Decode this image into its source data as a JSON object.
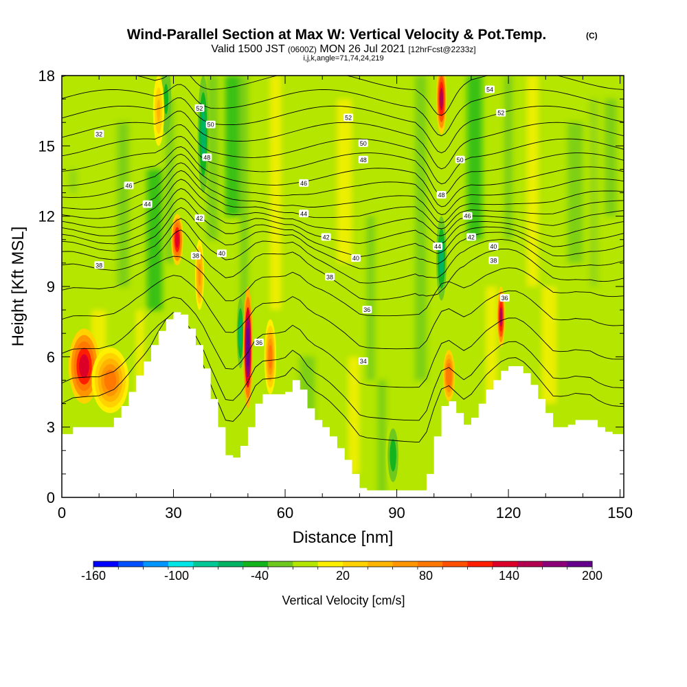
{
  "title": {
    "main": "Wind-Parallel Section at Max W: Vertical Velocity & Pot.Temp.",
    "copyright": "(C)",
    "valid_prefix": "Valid 1500 JST",
    "valid_utc": "(0600Z)",
    "valid_date": "MON 26 Jul 2021",
    "forecast": "[12hrFcst@2233z]",
    "indices": "i,j,k,angle=71,74,24,219"
  },
  "chart_data": {
    "type": "heatmap",
    "xlabel": "Distance [nm]",
    "ylabel": "Height [Kft MSL]",
    "xlim": [
      0,
      151
    ],
    "ylim": [
      0,
      18
    ],
    "x_ticks": [
      0,
      30,
      60,
      90,
      120,
      150
    ],
    "y_ticks": [
      0,
      3,
      6,
      9,
      12,
      15,
      18
    ],
    "x_ticks_labels": [
      "0",
      "30",
      "60",
      "90",
      "120",
      "150"
    ],
    "y_ticks_labels": [
      "0",
      "3",
      "6",
      "9",
      "12",
      "15",
      "18"
    ],
    "x_minor_step": 10,
    "y_minor_step": 1,
    "terrain": {
      "x": [
        0,
        3,
        6,
        10,
        14,
        16,
        18,
        20,
        22,
        24,
        26,
        28,
        30,
        32,
        34,
        36,
        38,
        40,
        42,
        44,
        46,
        48,
        50,
        52,
        54,
        56,
        58,
        60,
        62,
        64,
        66,
        68,
        70,
        72,
        74,
        76,
        78,
        80,
        82,
        84,
        86,
        88,
        90,
        92,
        94,
        96,
        98,
        100,
        102,
        104,
        106,
        108,
        110,
        112,
        114,
        116,
        118,
        120,
        122,
        124,
        126,
        128,
        130,
        132,
        134,
        136,
        138,
        140,
        142,
        144,
        146,
        148,
        151
      ],
      "height": [
        2.7,
        3.0,
        3.0,
        3.0,
        3.4,
        3.9,
        4.5,
        5.2,
        5.8,
        6.5,
        7.1,
        7.6,
        7.9,
        7.8,
        7.2,
        6.5,
        5.5,
        4.2,
        3.0,
        1.8,
        1.7,
        2.2,
        3.0,
        4.0,
        4.4,
        4.4,
        4.4,
        4.5,
        5.0,
        4.6,
        3.8,
        3.3,
        3.0,
        2.6,
        2.1,
        1.6,
        1.0,
        0.4,
        0.3,
        0.3,
        0.3,
        0.3,
        0.3,
        0.3,
        0.3,
        0.3,
        1.0,
        2.6,
        3.9,
        4.1,
        3.6,
        3.1,
        3.4,
        4.0,
        4.6,
        5.0,
        5.4,
        5.6,
        5.6,
        5.3,
        4.8,
        4.2,
        3.6,
        3.0,
        3.0,
        3.1,
        3.3,
        3.3,
        3.3,
        3.0,
        2.8,
        2.7,
        2.7
      ]
    },
    "updrafts": [
      {
        "x": 6,
        "center_height": 5.6,
        "width": 4.2,
        "height_span": 1.6,
        "velocity": 140
      },
      {
        "x": 13,
        "center_height": 5.0,
        "width": 5,
        "height_span": 1.4,
        "velocity": 75
      },
      {
        "x": 31,
        "center_height": 11.0,
        "width": 1.6,
        "height_span": 1.1,
        "velocity": 130
      },
      {
        "x": 50,
        "center_height": 6.4,
        "width": 1.3,
        "height_span": 2.6,
        "velocity": 200
      },
      {
        "x": 56,
        "center_height": 6.0,
        "width": 1.6,
        "height_span": 1.6,
        "velocity": 75
      },
      {
        "x": 102,
        "center_height": 17.0,
        "width": 1.4,
        "height_span": 1.5,
        "velocity": 150
      },
      {
        "x": 104,
        "center_height": 5.2,
        "width": 1.6,
        "height_span": 1.1,
        "velocity": 90
      },
      {
        "x": 118,
        "center_height": 7.7,
        "width": 1.1,
        "height_span": 1.3,
        "velocity": 150
      },
      {
        "x": 37,
        "center_height": 9.5,
        "width": 1.2,
        "height_span": 1.5,
        "velocity": 60
      },
      {
        "x": 26,
        "center_height": 16.5,
        "width": 1.5,
        "height_span": 1.5,
        "velocity": 40
      }
    ],
    "downdrafts": [
      {
        "x": 38,
        "center_height": 15.5,
        "width": 1.5,
        "height_span": 2.5,
        "velocity": -60
      },
      {
        "x": 48,
        "center_height": 7.0,
        "width": 1.0,
        "height_span": 1.5,
        "velocity": -70
      },
      {
        "x": 102,
        "center_height": 10.2,
        "width": 1.4,
        "height_span": 1.8,
        "velocity": -55
      },
      {
        "x": 28,
        "center_height": 17.0,
        "width": 1.4,
        "height_span": 1.5,
        "velocity": -45
      },
      {
        "x": 89,
        "center_height": 1.8,
        "width": 2.0,
        "height_span": 1.6,
        "velocity": -40
      }
    ],
    "theta_contour_labels": [
      {
        "value": "32",
        "x": 10,
        "height": 15.5
      },
      {
        "value": "52",
        "x": 37,
        "height": 16.6
      },
      {
        "value": "50",
        "x": 40,
        "height": 15.9
      },
      {
        "value": "48",
        "x": 39,
        "height": 14.5
      },
      {
        "value": "46",
        "x": 18,
        "height": 13.3
      },
      {
        "value": "44",
        "x": 23,
        "height": 12.5
      },
      {
        "value": "42",
        "x": 37,
        "height": 11.9
      },
      {
        "value": "40",
        "x": 43,
        "height": 10.4
      },
      {
        "value": "38",
        "x": 10,
        "height": 9.9
      },
      {
        "value": "38",
        "x": 36,
        "height": 10.3
      },
      {
        "value": "52",
        "x": 77,
        "height": 16.2
      },
      {
        "value": "50",
        "x": 81,
        "height": 15.1
      },
      {
        "value": "48",
        "x": 81,
        "height": 14.4
      },
      {
        "value": "46",
        "x": 65,
        "height": 13.4
      },
      {
        "value": "44",
        "x": 65,
        "height": 12.1
      },
      {
        "value": "42",
        "x": 71,
        "height": 11.1
      },
      {
        "value": "40",
        "x": 79,
        "height": 10.2
      },
      {
        "value": "38",
        "x": 72,
        "height": 9.4
      },
      {
        "value": "36",
        "x": 82,
        "height": 8.0
      },
      {
        "value": "36",
        "x": 53,
        "height": 6.6
      },
      {
        "value": "34",
        "x": 81,
        "height": 5.8
      },
      {
        "value": "54",
        "x": 115,
        "height": 17.4
      },
      {
        "value": "52",
        "x": 118,
        "height": 16.4
      },
      {
        "value": "50",
        "x": 107,
        "height": 14.4
      },
      {
        "value": "48",
        "x": 102,
        "height": 12.9
      },
      {
        "value": "46",
        "x": 109,
        "height": 12.0
      },
      {
        "value": "44",
        "x": 101,
        "height": 10.7
      },
      {
        "value": "42",
        "x": 110,
        "height": 11.1
      },
      {
        "value": "40",
        "x": 116,
        "height": 10.7
      },
      {
        "value": "38",
        "x": 116,
        "height": 10.1
      },
      {
        "value": "36",
        "x": 119,
        "height": 8.5
      }
    ]
  },
  "colorbar": {
    "title": "Vertical Velocity [cm/s]",
    "min": -160,
    "max": 200,
    "labels": [
      "-160",
      "-100",
      "-40",
      "20",
      "80",
      "140",
      "200"
    ],
    "label_values": [
      -160,
      -100,
      -40,
      20,
      80,
      140,
      200
    ],
    "colors": [
      "#0000ff",
      "#0050ff",
      "#0096ff",
      "#00e6e6",
      "#00c896",
      "#00b464",
      "#14b41e",
      "#6ec81e",
      "#b4e600",
      "#fff000",
      "#ffd200",
      "#ffb400",
      "#ff9600",
      "#ff7800",
      "#ff5000",
      "#ff1e00",
      "#dc0028",
      "#b40050",
      "#8c0078",
      "#64008c"
    ]
  }
}
